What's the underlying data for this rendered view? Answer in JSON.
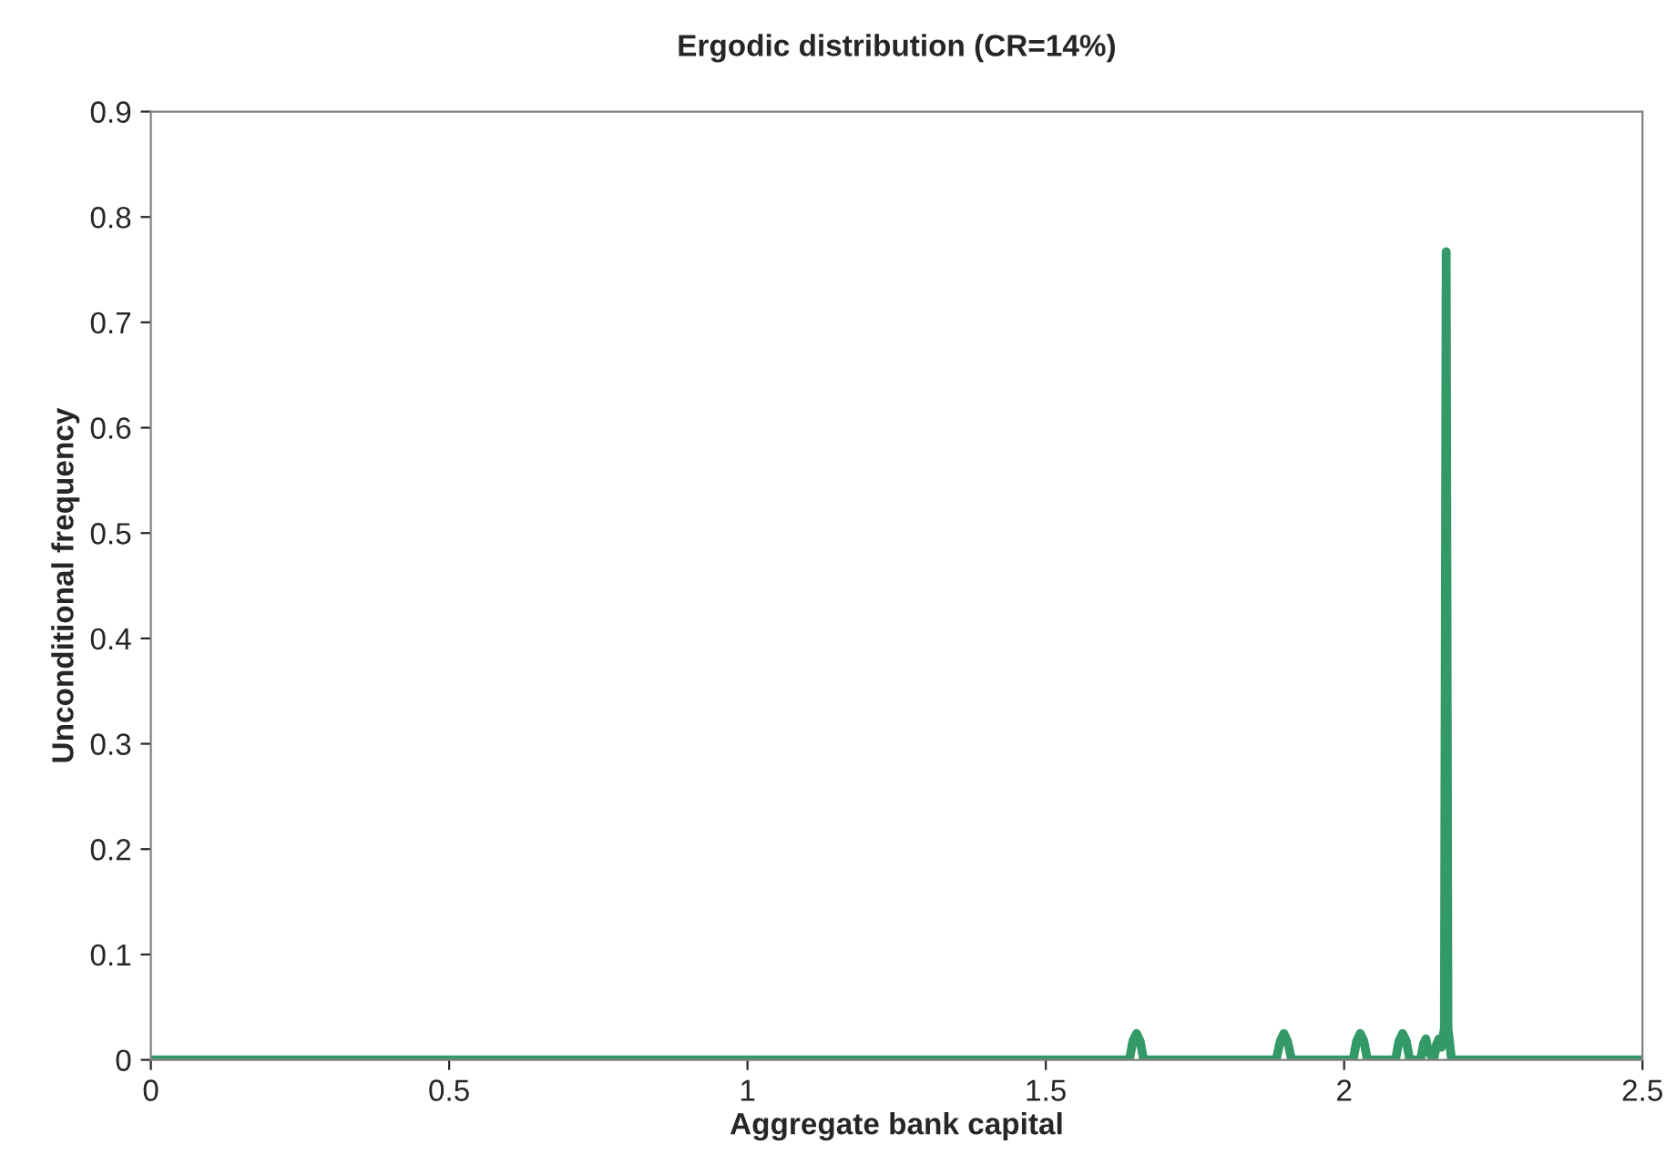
{
  "chart_data": {
    "type": "line",
    "title": "Ergodic distribution (CR=14%)",
    "xlabel": "Aggregate bank capital",
    "ylabel": "Unconditional frequency",
    "series": [
      {
        "color": "#339966",
        "x": [
          0,
          1.64,
          1.646,
          1.652,
          1.658,
          1.664,
          1.886,
          1.893,
          1.899,
          1.905,
          1.912,
          2.015,
          2.021,
          2.027,
          2.033,
          2.039,
          2.086,
          2.092,
          2.098,
          2.104,
          2.11,
          2.128,
          2.133,
          2.137,
          2.141,
          2.15,
          2.155,
          2.159,
          2.163,
          2.168,
          2.171,
          2.174,
          2.18,
          2.5
        ],
        "values": [
          0,
          0,
          0.018,
          0.025,
          0.018,
          0,
          0,
          0.018,
          0.025,
          0.018,
          0,
          0,
          0.018,
          0.025,
          0.018,
          0,
          0,
          0.018,
          0.025,
          0.018,
          0,
          0,
          0.015,
          0.02,
          0.008,
          0,
          0.015,
          0.02,
          0.012,
          0.03,
          0.767,
          0.03,
          0,
          0
        ]
      }
    ],
    "xlim": [
      0,
      2.5
    ],
    "xticks": [
      0,
      0.5,
      1,
      1.5,
      2,
      2.5
    ],
    "ylim": [
      0,
      0.9
    ],
    "yticks": [
      0,
      0.1,
      0.2,
      0.3,
      0.4,
      0.5,
      0.6,
      0.7,
      0.8,
      0.9
    ],
    "grid": false,
    "marker": "none",
    "line_style": "solid"
  }
}
